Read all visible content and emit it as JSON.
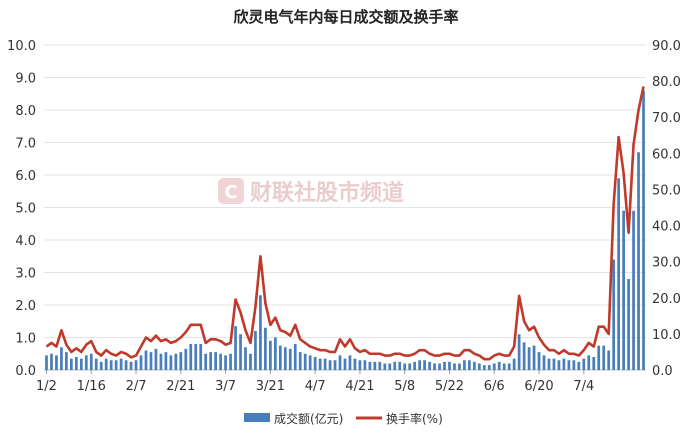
{
  "chart_data": {
    "type": "bar+line",
    "title": "欣灵电气年内每日成交额及换手率",
    "watermark": "财联社股市频道",
    "left_axis": {
      "ylim": [
        0,
        10
      ],
      "ticks": [
        "0.0",
        "1.0",
        "2.0",
        "3.0",
        "4.0",
        "5.0",
        "6.0",
        "7.0",
        "8.0",
        "9.0",
        "10.0"
      ]
    },
    "right_axis": {
      "ylim": [
        0,
        90
      ],
      "ticks": [
        "0.0",
        "10.0",
        "20.0",
        "30.0",
        "40.0",
        "50.0",
        "60.0",
        "70.0",
        "80.0",
        "90.0"
      ]
    },
    "x_tick_labels": [
      "1/2",
      "1/16",
      "2/7",
      "2/21",
      "3/7",
      "3/21",
      "4/7",
      "4/21",
      "5/8",
      "5/22",
      "6/6",
      "6/20",
      "7/4"
    ],
    "x_tick_indices": [
      0,
      9,
      18,
      27,
      36,
      45,
      54,
      63,
      72,
      81,
      90,
      99,
      108
    ],
    "legend_position": "bottom",
    "series": [
      {
        "name": "成交额(亿元)",
        "kind": "bar",
        "axis": "left",
        "color": "#4a7ebb",
        "values": [
          0.45,
          0.5,
          0.45,
          0.7,
          0.55,
          0.35,
          0.4,
          0.35,
          0.45,
          0.5,
          0.35,
          0.25,
          0.35,
          0.3,
          0.3,
          0.35,
          0.3,
          0.25,
          0.3,
          0.45,
          0.6,
          0.55,
          0.65,
          0.5,
          0.55,
          0.45,
          0.5,
          0.55,
          0.65,
          0.8,
          0.8,
          0.8,
          0.5,
          0.55,
          0.55,
          0.5,
          0.45,
          0.5,
          1.35,
          1.1,
          0.7,
          0.5,
          1.2,
          2.3,
          1.3,
          0.9,
          1.0,
          0.75,
          0.7,
          0.65,
          0.8,
          0.55,
          0.5,
          0.45,
          0.4,
          0.35,
          0.35,
          0.3,
          0.3,
          0.45,
          0.35,
          0.45,
          0.35,
          0.3,
          0.3,
          0.25,
          0.25,
          0.25,
          0.2,
          0.2,
          0.25,
          0.25,
          0.2,
          0.2,
          0.25,
          0.3,
          0.3,
          0.25,
          0.2,
          0.2,
          0.25,
          0.25,
          0.2,
          0.2,
          0.3,
          0.3,
          0.25,
          0.2,
          0.15,
          0.15,
          0.2,
          0.25,
          0.2,
          0.2,
          0.35,
          1.1,
          0.85,
          0.7,
          0.75,
          0.55,
          0.45,
          0.35,
          0.35,
          0.3,
          0.35,
          0.3,
          0.3,
          0.25,
          0.35,
          0.45,
          0.4,
          0.75,
          0.75,
          0.6,
          3.4,
          5.9,
          4.9,
          2.8,
          4.9,
          6.7,
          8.6
        ]
      },
      {
        "name": "换手率(%)",
        "kind": "line",
        "axis": "right",
        "color": "#c0392b",
        "values": [
          6.5,
          7.5,
          6.5,
          11,
          7,
          5,
          6,
          5,
          7,
          8,
          5,
          4,
          5.5,
          4.5,
          4,
          5,
          4.5,
          3.5,
          4,
          6.5,
          9,
          8,
          9.5,
          8,
          8.5,
          7.5,
          8,
          9,
          10.5,
          12.5,
          12.5,
          12.5,
          7.5,
          8.5,
          8.5,
          8,
          7,
          7.5,
          19.5,
          16,
          11,
          7.5,
          17.5,
          31.5,
          18.5,
          12.5,
          14.5,
          11,
          10.5,
          9.5,
          12.5,
          8.5,
          7.5,
          6.5,
          6,
          5.5,
          5.5,
          5,
          5,
          8.5,
          6.5,
          8.5,
          6,
          5,
          5.5,
          4.5,
          4.5,
          4.5,
          4,
          4,
          4.5,
          4.5,
          4,
          4,
          4.5,
          5.5,
          5.5,
          4.5,
          4,
          4,
          4.5,
          4.5,
          4,
          4,
          5.5,
          5.5,
          4.5,
          4,
          3,
          3,
          4,
          4.5,
          4,
          4,
          6.5,
          20.5,
          13.5,
          11,
          12,
          9,
          7,
          5.5,
          5.5,
          4.5,
          5.5,
          4.5,
          4.5,
          4,
          5.5,
          7.5,
          6.5,
          12,
          12,
          10,
          46,
          64.5,
          54.5,
          38,
          62.5,
          72,
          78.5
        ]
      }
    ]
  }
}
